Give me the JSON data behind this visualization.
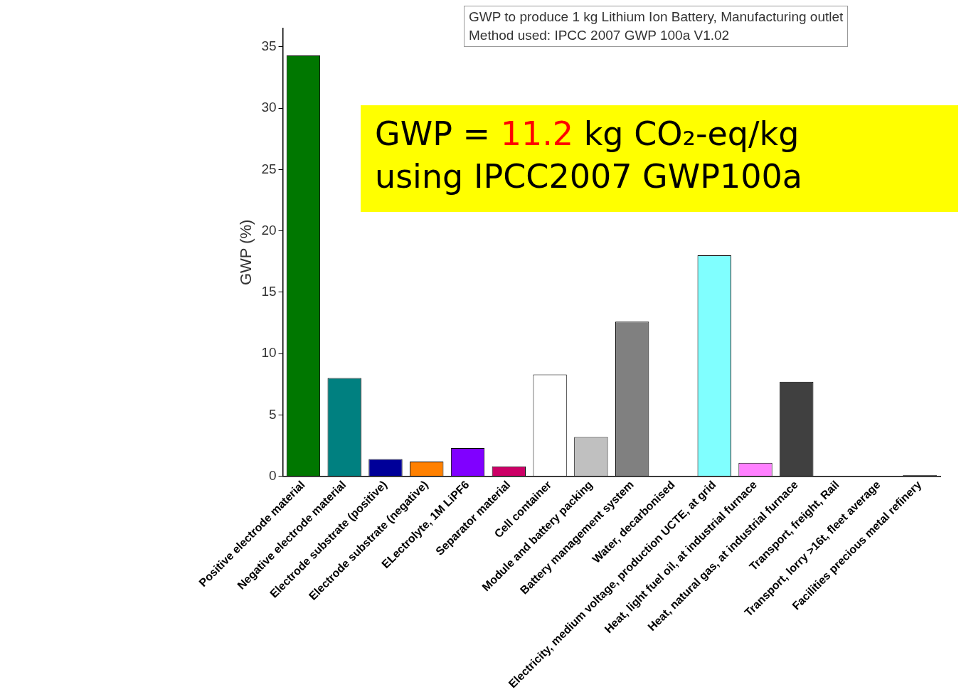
{
  "chart_data": {
    "type": "bar",
    "ylabel": "GWP (%)",
    "categories": [
      "Positive electrode material",
      "Negative electrode material",
      "Electrode substrate (positive)",
      "Electrode substrate (negative)",
      "ELectrolyte, 1M LiPF6",
      "Separator material",
      "Cell container",
      "Module and battery packing",
      "Battery management system",
      "Water, decarbonised",
      "Electricity, medium voltage, production UCTE, at grid",
      "Heat, light fuel oil, at industrial furnace",
      "Heat, natural gas, at industrial furnace",
      "Transport, freight, Rail",
      "Transport, lorry >16t, fleet average",
      "Facilities precious metal refinery"
    ],
    "values": [
      34.3,
      8.0,
      1.4,
      1.2,
      2.3,
      0.8,
      8.3,
      3.2,
      12.6,
      0,
      18.0,
      1.1,
      7.7,
      0,
      0,
      0.1
    ],
    "colors": [
      "#007700",
      "#008080",
      "#000099",
      "#ff8000",
      "#8000ff",
      "#cc0066",
      "#ffffff",
      "#c0c0c0",
      "#808080",
      "#ffffff",
      "#80ffff",
      "#ff80ff",
      "#404040",
      "#ffffff",
      "#ffffff",
      "#404040"
    ],
    "ylim": [
      0,
      36.5
    ],
    "yticks": [
      0,
      5,
      10,
      15,
      20,
      25,
      30,
      35
    ],
    "grid": false,
    "legend": false,
    "annotations": [
      "GWP to produce 1 kg Lithium Ion Battery, Manufacturing outlet\nMethod used: IPCC 2007 GWP 100a V1.02",
      "GWP = 11.2 kg CO₂-eq/kg\nusing IPCC2007 GWP100a"
    ]
  }
}
